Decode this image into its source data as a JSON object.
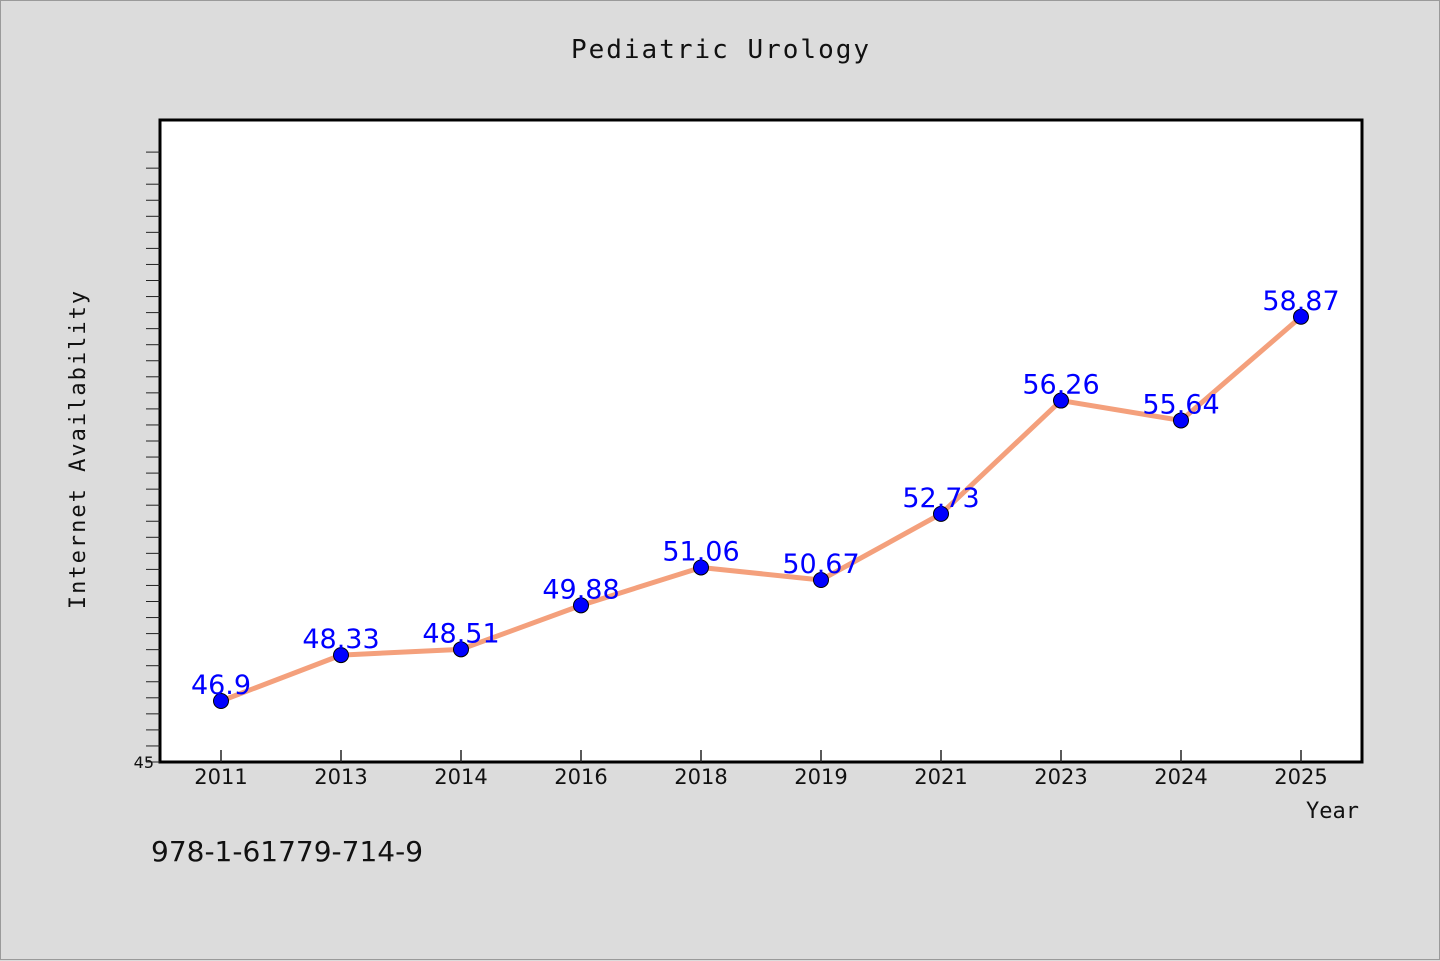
{
  "chart_data": {
    "type": "line",
    "title": "Pediatric Urology",
    "xlabel": "Year",
    "ylabel": "Internet Availability",
    "categories": [
      "2011",
      "2013",
      "2014",
      "2016",
      "2018",
      "2019",
      "2021",
      "2023",
      "2024",
      "2025"
    ],
    "values": [
      46.9,
      48.33,
      48.51,
      49.88,
      51.06,
      50.67,
      52.73,
      56.26,
      55.64,
      58.87
    ],
    "data_labels": [
      "46.9",
      "48.33",
      "48.51",
      "49.88",
      "51.06",
      "50.67",
      "52.73",
      "56.26",
      "55.64",
      "58.87"
    ],
    "y_tick_labels": [
      "45"
    ],
    "ylim": [
      45,
      65
    ],
    "grid": false,
    "line_color": "#f4a07c",
    "marker_color": "#0000ff",
    "label_color": "#0000ff"
  },
  "footer": {
    "isbn": "978-1-61779-714-9"
  }
}
